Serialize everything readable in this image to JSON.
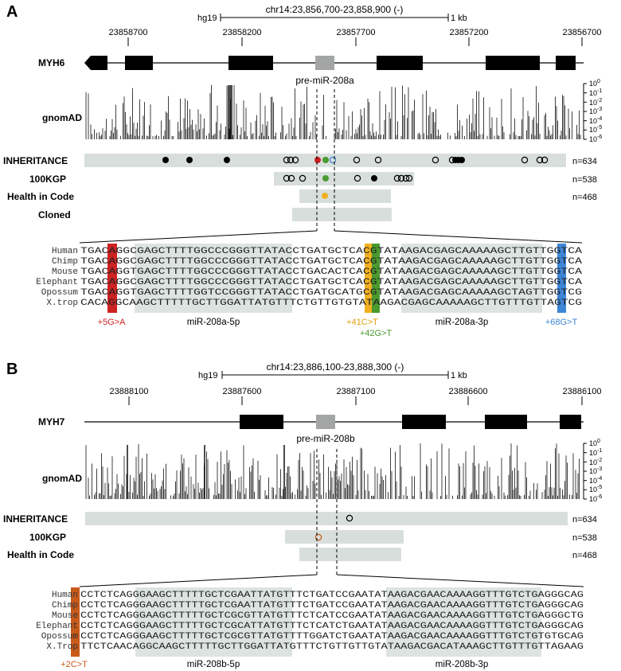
{
  "figure": {
    "panels": [
      {
        "letter": "A",
        "assembly": "hg19",
        "region": "chr14:23,856,700-23,858,900 (-)",
        "scale": "1 kb",
        "coords": [
          "23858700",
          "23858200",
          "23857700",
          "23857200",
          "23856700"
        ],
        "gene": "MYH6",
        "premir": "pre-miR-208a",
        "gnomad_label": "gnomAD",
        "yticks": [
          "10^0",
          "10^-1",
          "10^-2",
          "10^-3",
          "10^-4",
          "10^-5",
          "10^-6"
        ],
        "tracks": [
          {
            "label": "INHERITANCE",
            "n": "n=634"
          },
          {
            "label": "100KGP",
            "n": "n=538"
          },
          {
            "label": "Health in Code",
            "n": "n=468"
          },
          {
            "label": "Cloned",
            "n": ""
          }
        ],
        "species": [
          "Human",
          "Chimp",
          "Mouse",
          "Elephant",
          "Opossum",
          "X.trop"
        ],
        "sequences": [
          "TGACAGGCGAGCTTTTGGCCCGGGTTATACCTGATGCTCACGTATAAGACGAGCAAAAAGCTTGTTGGTCA",
          "TGACAGGCGAGCTTTTGGCCCGGGTTATACCTGATGCTCACGTATAAGACGAGCAAAAAGCTTGTTGGTCA",
          "TGACAGGTGAGCTTTTGGCCCGGGTTATACCTGACACTCACGTATAAGACGAGCAAAAAGCTTGTTGGTCA",
          "TGACAGGCGAGCTTTTGGCCCGGGTTATACCTGATGCTCACGTATAAGACGAGCAAAAAGCTTGTTGGTCA",
          "TGACAGGTGAGCTTTTGGTCCGGGTTATACCTGATGCATGCGTATAAGACGAGCAAAAAGCTAGTTGGTCG",
          "CACAGGCAAGCTTTTTGCTTGGATTATGTTTCTGTTGTGTATAAGACGAGCAAAAAGCTTGTTTGTTAGTCG"
        ],
        "mature": [
          "miR-208a-5p",
          "miR-208a-3p"
        ],
        "variants": [
          "+5G>A",
          "+41C>T",
          "+42G>T",
          "+68G>T"
        ]
      },
      {
        "letter": "B",
        "assembly": "hg19",
        "region": "chr14:23,886,100-23,888,300 (-)",
        "scale": "1 kb",
        "coords": [
          "23888100",
          "23887600",
          "23887100",
          "23886600",
          "23886100"
        ],
        "gene": "MYH7",
        "premir": "pre-miR-208b",
        "gnomad_label": "gnomAD",
        "yticks": [
          "10^0",
          "10^-1",
          "10^-2",
          "10^-3",
          "10^-4",
          "10^-5",
          "10^-6"
        ],
        "tracks": [
          {
            "label": "INHERITANCE",
            "n": "n=634"
          },
          {
            "label": "100KGP",
            "n": "n=538"
          },
          {
            "label": "Health in Code",
            "n": "n=468"
          }
        ],
        "species": [
          "Human",
          "Chimp",
          "Mouse",
          "Elephant",
          "Opossum",
          "X.Trop"
        ],
        "sequences": [
          "CCTCTCAGGGAAGCTTTTTGCTCGAATTATGTTTCTGATCCGAATATAAGACGAACAAAAGGTTTGTCTGAGGGCAG",
          "CCTCTCAGGGAAGCTTTTTGCTCGAATTATGTTTCTGATCCGAATATAAGACGAACAAAAGGTTTGTCTGAGGGCAG",
          "CCTCTCAGGGAAGCTTTTTGCTCGCGTTATGTTTCTCATCCGAATATAAGACGAACAAAAGGTTTGTCTGAGGGCTG",
          "CCTCTCAGGGAAGCTTTTTGCTCGCATTATGTTTCTCATCTGAATATAAGACGAACAAAAGGTTTGTCTGAGGGCAG",
          "CCTCTCAGGGAAGCTTTTTGCTCGCGTTATGTTTTGGATCTGAATATAAGACGAACAAAAGGTTTGTCTGTGTGCAG",
          "TTCTCAACAGGCAAGCTTTTTGCTTGGATTATGTTTCTGTTGTTGTATAAGACGACATAAAGCTTGTTTGTTAGAAG"
        ],
        "mature": [
          "miR-208b-5p",
          "miR-208b-3p"
        ],
        "variants": [
          "+2C>T"
        ]
      }
    ],
    "colors": {
      "track_bg": "#d8dedc",
      "seq_shade": "#dce3e0",
      "diff": "#5ec8e0",
      "red": "#cc2222",
      "green": "#4a9a2e",
      "orange": "#f0b020",
      "blue": "#3d85d6",
      "brown": "#c85a1a",
      "premir": "#a3a6a5"
    }
  }
}
